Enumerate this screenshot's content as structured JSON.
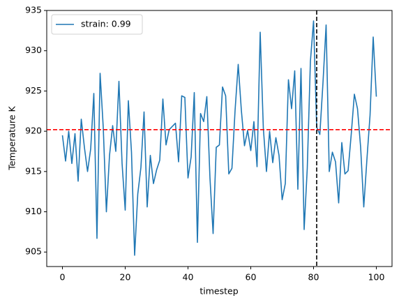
{
  "chart_data": {
    "type": "line",
    "xlabel": "timestep",
    "ylabel": "Temperature K",
    "x": [
      0,
      1,
      2,
      3,
      4,
      5,
      6,
      7,
      8,
      9,
      10,
      11,
      12,
      13,
      14,
      15,
      16,
      17,
      18,
      19,
      20,
      21,
      22,
      23,
      24,
      25,
      26,
      27,
      28,
      29,
      30,
      31,
      32,
      33,
      34,
      35,
      36,
      37,
      38,
      39,
      40,
      41,
      42,
      43,
      44,
      45,
      46,
      47,
      48,
      49,
      50,
      51,
      52,
      53,
      54,
      55,
      56,
      57,
      58,
      59,
      60,
      61,
      62,
      63,
      64,
      65,
      66,
      67,
      68,
      69,
      70,
      71,
      72,
      73,
      74,
      75,
      76,
      77,
      78,
      79,
      80,
      81,
      82,
      83,
      84,
      85,
      86,
      87,
      88,
      89,
      90,
      91,
      92,
      93,
      94,
      95,
      96,
      97,
      98,
      99,
      100
    ],
    "series": [
      {
        "name": "strain: 0.99",
        "color": "#1f77b4",
        "values": [
          919.5,
          916.3,
          920,
          916,
          919.7,
          913.8,
          921.5,
          918,
          915,
          917.8,
          924.7,
          906.7,
          927.2,
          920.5,
          910,
          917,
          920.7,
          917.5,
          926.2,
          916,
          910.2,
          923.8,
          917.4,
          904.6,
          912.2,
          915.5,
          922.4,
          910.6,
          917,
          913.5,
          915.2,
          916.4,
          924,
          918.3,
          920.2,
          920.6,
          921,
          916.2,
          924.4,
          924.2,
          914.2,
          916.8,
          924.8,
          906.2,
          922.2,
          921.2,
          924.3,
          914.2,
          907.3,
          918,
          918.3,
          925.5,
          924.4,
          914.7,
          915.4,
          922.6,
          928.3,
          922.6,
          918.2,
          920.1,
          917.6,
          921.2,
          915.6,
          932.3,
          920.4,
          915,
          920,
          916.1,
          919.2,
          917,
          911.5,
          913.5,
          926.4,
          922.8,
          927.5,
          912.8,
          927.8,
          907.8,
          915.4,
          928.7,
          933.7,
          920.5,
          919.6,
          926,
          933.2,
          915,
          917.4,
          916.2,
          911.1,
          918.6,
          914.7,
          915.1,
          919.6,
          924.6,
          922.8,
          918,
          910.6,
          916.5,
          922,
          931.7,
          924.3
        ]
      }
    ],
    "reference_lines": [
      {
        "axis": "y",
        "value": 920.2,
        "color": "#ff0000"
      },
      {
        "axis": "x",
        "value": 81,
        "color": "#000000"
      }
    ],
    "xlim": [
      -5,
      105
    ],
    "ylim": [
      903.2,
      935
    ],
    "xticks": [
      0,
      20,
      40,
      60,
      80,
      100
    ],
    "yticks": [
      905,
      910,
      915,
      920,
      925,
      930,
      935
    ],
    "legend": "upper left"
  }
}
